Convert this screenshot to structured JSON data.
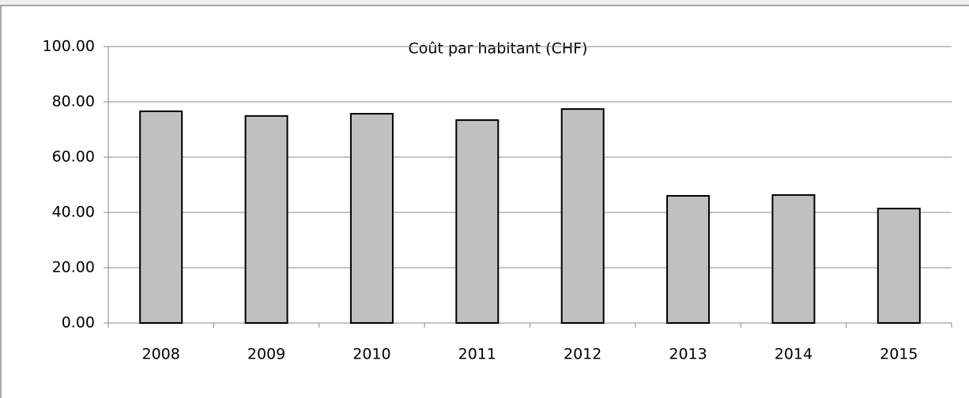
{
  "chart_data": {
    "type": "bar",
    "title": "Coût par habitant (CHF)",
    "categories": [
      "2008",
      "2009",
      "2010",
      "2011",
      "2012",
      "2013",
      "2014",
      "2015"
    ],
    "values": [
      76.6,
      74.9,
      75.7,
      73.4,
      77.4,
      46.0,
      46.3,
      41.4
    ],
    "color": "#c0c0c0",
    "ylim": [
      0,
      100
    ],
    "yticks": [
      {
        "value": 0,
        "label": "0.00"
      },
      {
        "value": 20,
        "label": "20.00"
      },
      {
        "value": 40,
        "label": "40.00"
      },
      {
        "value": 60,
        "label": "60.00"
      },
      {
        "value": 80,
        "label": "80.00"
      },
      {
        "value": 100,
        "label": "100.00"
      }
    ],
    "grid": true
  }
}
